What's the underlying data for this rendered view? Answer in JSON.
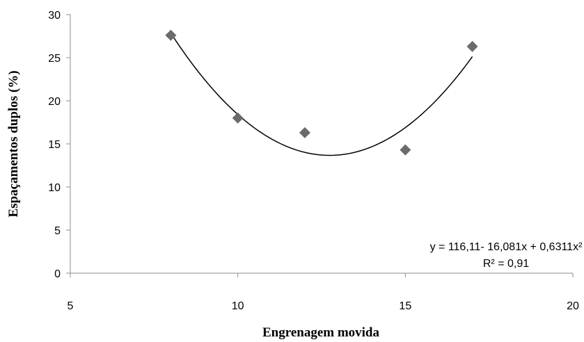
{
  "chart_data": {
    "type": "scatter",
    "xlabel": "Engrenagem movida",
    "ylabel": "Espaçamentos duplos (%)",
    "xlim": [
      5,
      20
    ],
    "ylim": [
      0,
      30
    ],
    "x_ticks": [
      5,
      10,
      15,
      20
    ],
    "y_ticks": [
      0,
      5,
      10,
      15,
      20,
      25,
      30
    ],
    "grid": false,
    "points": [
      {
        "x": 8,
        "y": 27.6
      },
      {
        "x": 10,
        "y": 18.0
      },
      {
        "x": 12,
        "y": 16.3
      },
      {
        "x": 15,
        "y": 14.3
      },
      {
        "x": 17,
        "y": 26.3
      }
    ],
    "trendline": {
      "type": "polynomial",
      "coefficients": [
        116.11,
        -16.081,
        0.6311
      ],
      "x_range": [
        8,
        17
      ],
      "equation": "y = 116,11- 16,081x + 0,6311x²",
      "r_squared": "R² = 0,91"
    },
    "colors": {
      "marker": "#6b6b6b",
      "trendline": "#000000",
      "axis": "#8c8c8c"
    }
  }
}
